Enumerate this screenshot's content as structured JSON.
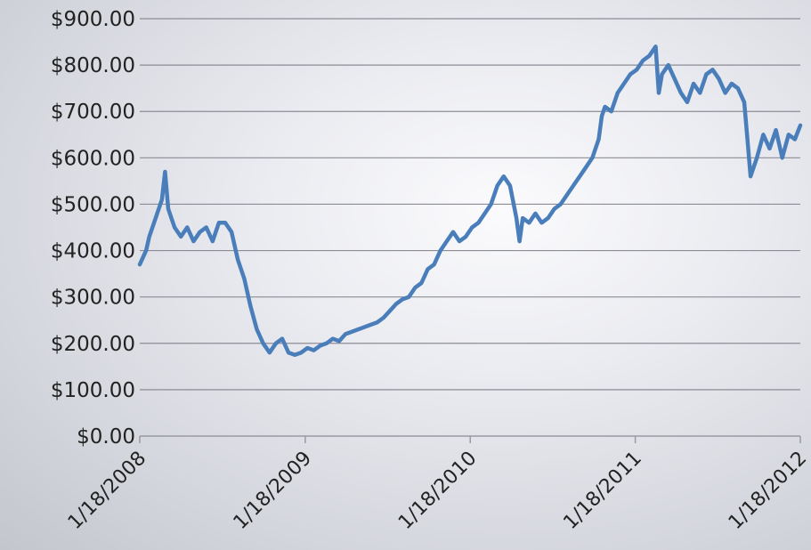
{
  "chart_data": {
    "type": "line",
    "title": "",
    "xlabel": "",
    "ylabel": "",
    "ylim": [
      0,
      900
    ],
    "xlim": [
      "2008-01-18",
      "2012-01-18"
    ],
    "y_ticks": [
      {
        "value": 0,
        "label": "$0.00"
      },
      {
        "value": 100,
        "label": "$100.00"
      },
      {
        "value": 200,
        "label": "$200.00"
      },
      {
        "value": 300,
        "label": "$300.00"
      },
      {
        "value": 400,
        "label": "$400.00"
      },
      {
        "value": 500,
        "label": "$500.00"
      },
      {
        "value": 600,
        "label": "$600.00"
      },
      {
        "value": 700,
        "label": "$700.00"
      },
      {
        "value": 800,
        "label": "$800.00"
      },
      {
        "value": 900,
        "label": "$900.00"
      }
    ],
    "x_ticks": [
      {
        "value": "2008-01-18",
        "label": "1/18/2008"
      },
      {
        "value": "2009-01-18",
        "label": "1/18/2009"
      },
      {
        "value": "2010-01-18",
        "label": "1/18/2010"
      },
      {
        "value": "2011-01-18",
        "label": "1/18/2011"
      },
      {
        "value": "2012-01-18",
        "label": "1/18/2012"
      }
    ],
    "grid": true,
    "legend": "none",
    "line_color": "#4a7ebb",
    "series": [
      {
        "x": [
          "2008-01-18",
          "2008-02-01",
          "2008-02-08",
          "2008-02-22",
          "2008-03-07",
          "2008-03-14",
          "2008-03-21",
          "2008-04-04",
          "2008-04-18",
          "2008-05-02",
          "2008-05-16",
          "2008-05-30",
          "2008-06-13",
          "2008-06-27",
          "2008-07-11",
          "2008-07-25",
          "2008-08-08",
          "2008-08-22",
          "2008-09-05",
          "2008-09-19",
          "2008-10-03",
          "2008-10-17",
          "2008-10-31",
          "2008-11-14",
          "2008-11-28",
          "2008-12-12",
          "2008-12-26",
          "2009-01-09",
          "2009-01-23",
          "2009-02-06",
          "2009-02-20",
          "2009-03-06",
          "2009-03-20",
          "2009-04-03",
          "2009-04-17",
          "2009-05-01",
          "2009-05-15",
          "2009-05-29",
          "2009-06-12",
          "2009-06-26",
          "2009-07-10",
          "2009-07-24",
          "2009-08-07",
          "2009-08-21",
          "2009-09-04",
          "2009-09-18",
          "2009-10-02",
          "2009-10-16",
          "2009-10-30",
          "2009-11-13",
          "2009-11-27",
          "2009-12-11",
          "2009-12-25",
          "2010-01-08",
          "2010-01-22",
          "2010-02-05",
          "2010-02-19",
          "2010-03-05",
          "2010-03-19",
          "2010-04-02",
          "2010-04-16",
          "2010-04-30",
          "2010-05-07",
          "2010-05-14",
          "2010-05-28",
          "2010-06-11",
          "2010-06-25",
          "2010-07-09",
          "2010-07-23",
          "2010-08-06",
          "2010-08-20",
          "2010-09-03",
          "2010-09-17",
          "2010-10-01",
          "2010-10-15",
          "2010-10-29",
          "2010-11-05",
          "2010-11-12",
          "2010-11-26",
          "2010-12-10",
          "2010-12-24",
          "2011-01-07",
          "2011-01-21",
          "2011-02-04",
          "2011-02-18",
          "2011-03-04",
          "2011-03-11",
          "2011-03-18",
          "2011-04-01",
          "2011-04-15",
          "2011-04-29",
          "2011-05-13",
          "2011-05-27",
          "2011-06-10",
          "2011-06-24",
          "2011-07-08",
          "2011-07-22",
          "2011-08-05",
          "2011-08-19",
          "2011-09-02",
          "2011-09-16",
          "2011-09-23",
          "2011-09-30",
          "2011-10-14",
          "2011-10-28",
          "2011-11-11",
          "2011-11-25",
          "2011-12-09",
          "2011-12-23",
          "2012-01-06",
          "2012-01-18"
        ],
        "values": [
          370,
          400,
          430,
          470,
          510,
          570,
          490,
          450,
          430,
          450,
          420,
          440,
          450,
          420,
          460,
          460,
          440,
          380,
          340,
          280,
          230,
          200,
          180,
          200,
          210,
          180,
          175,
          180,
          190,
          185,
          195,
          200,
          210,
          205,
          220,
          225,
          230,
          235,
          240,
          245,
          255,
          270,
          285,
          295,
          300,
          320,
          330,
          360,
          370,
          400,
          420,
          440,
          420,
          430,
          450,
          460,
          480,
          500,
          540,
          560,
          540,
          470,
          420,
          470,
          460,
          480,
          460,
          470,
          490,
          500,
          520,
          540,
          560,
          580,
          600,
          640,
          690,
          710,
          700,
          740,
          760,
          780,
          790,
          810,
          820,
          840,
          740,
          780,
          800,
          770,
          740,
          720,
          760,
          740,
          780,
          790,
          770,
          740,
          760,
          750,
          720,
          640,
          560,
          600,
          650,
          620,
          660,
          600,
          650,
          640,
          670
        ]
      }
    ]
  }
}
